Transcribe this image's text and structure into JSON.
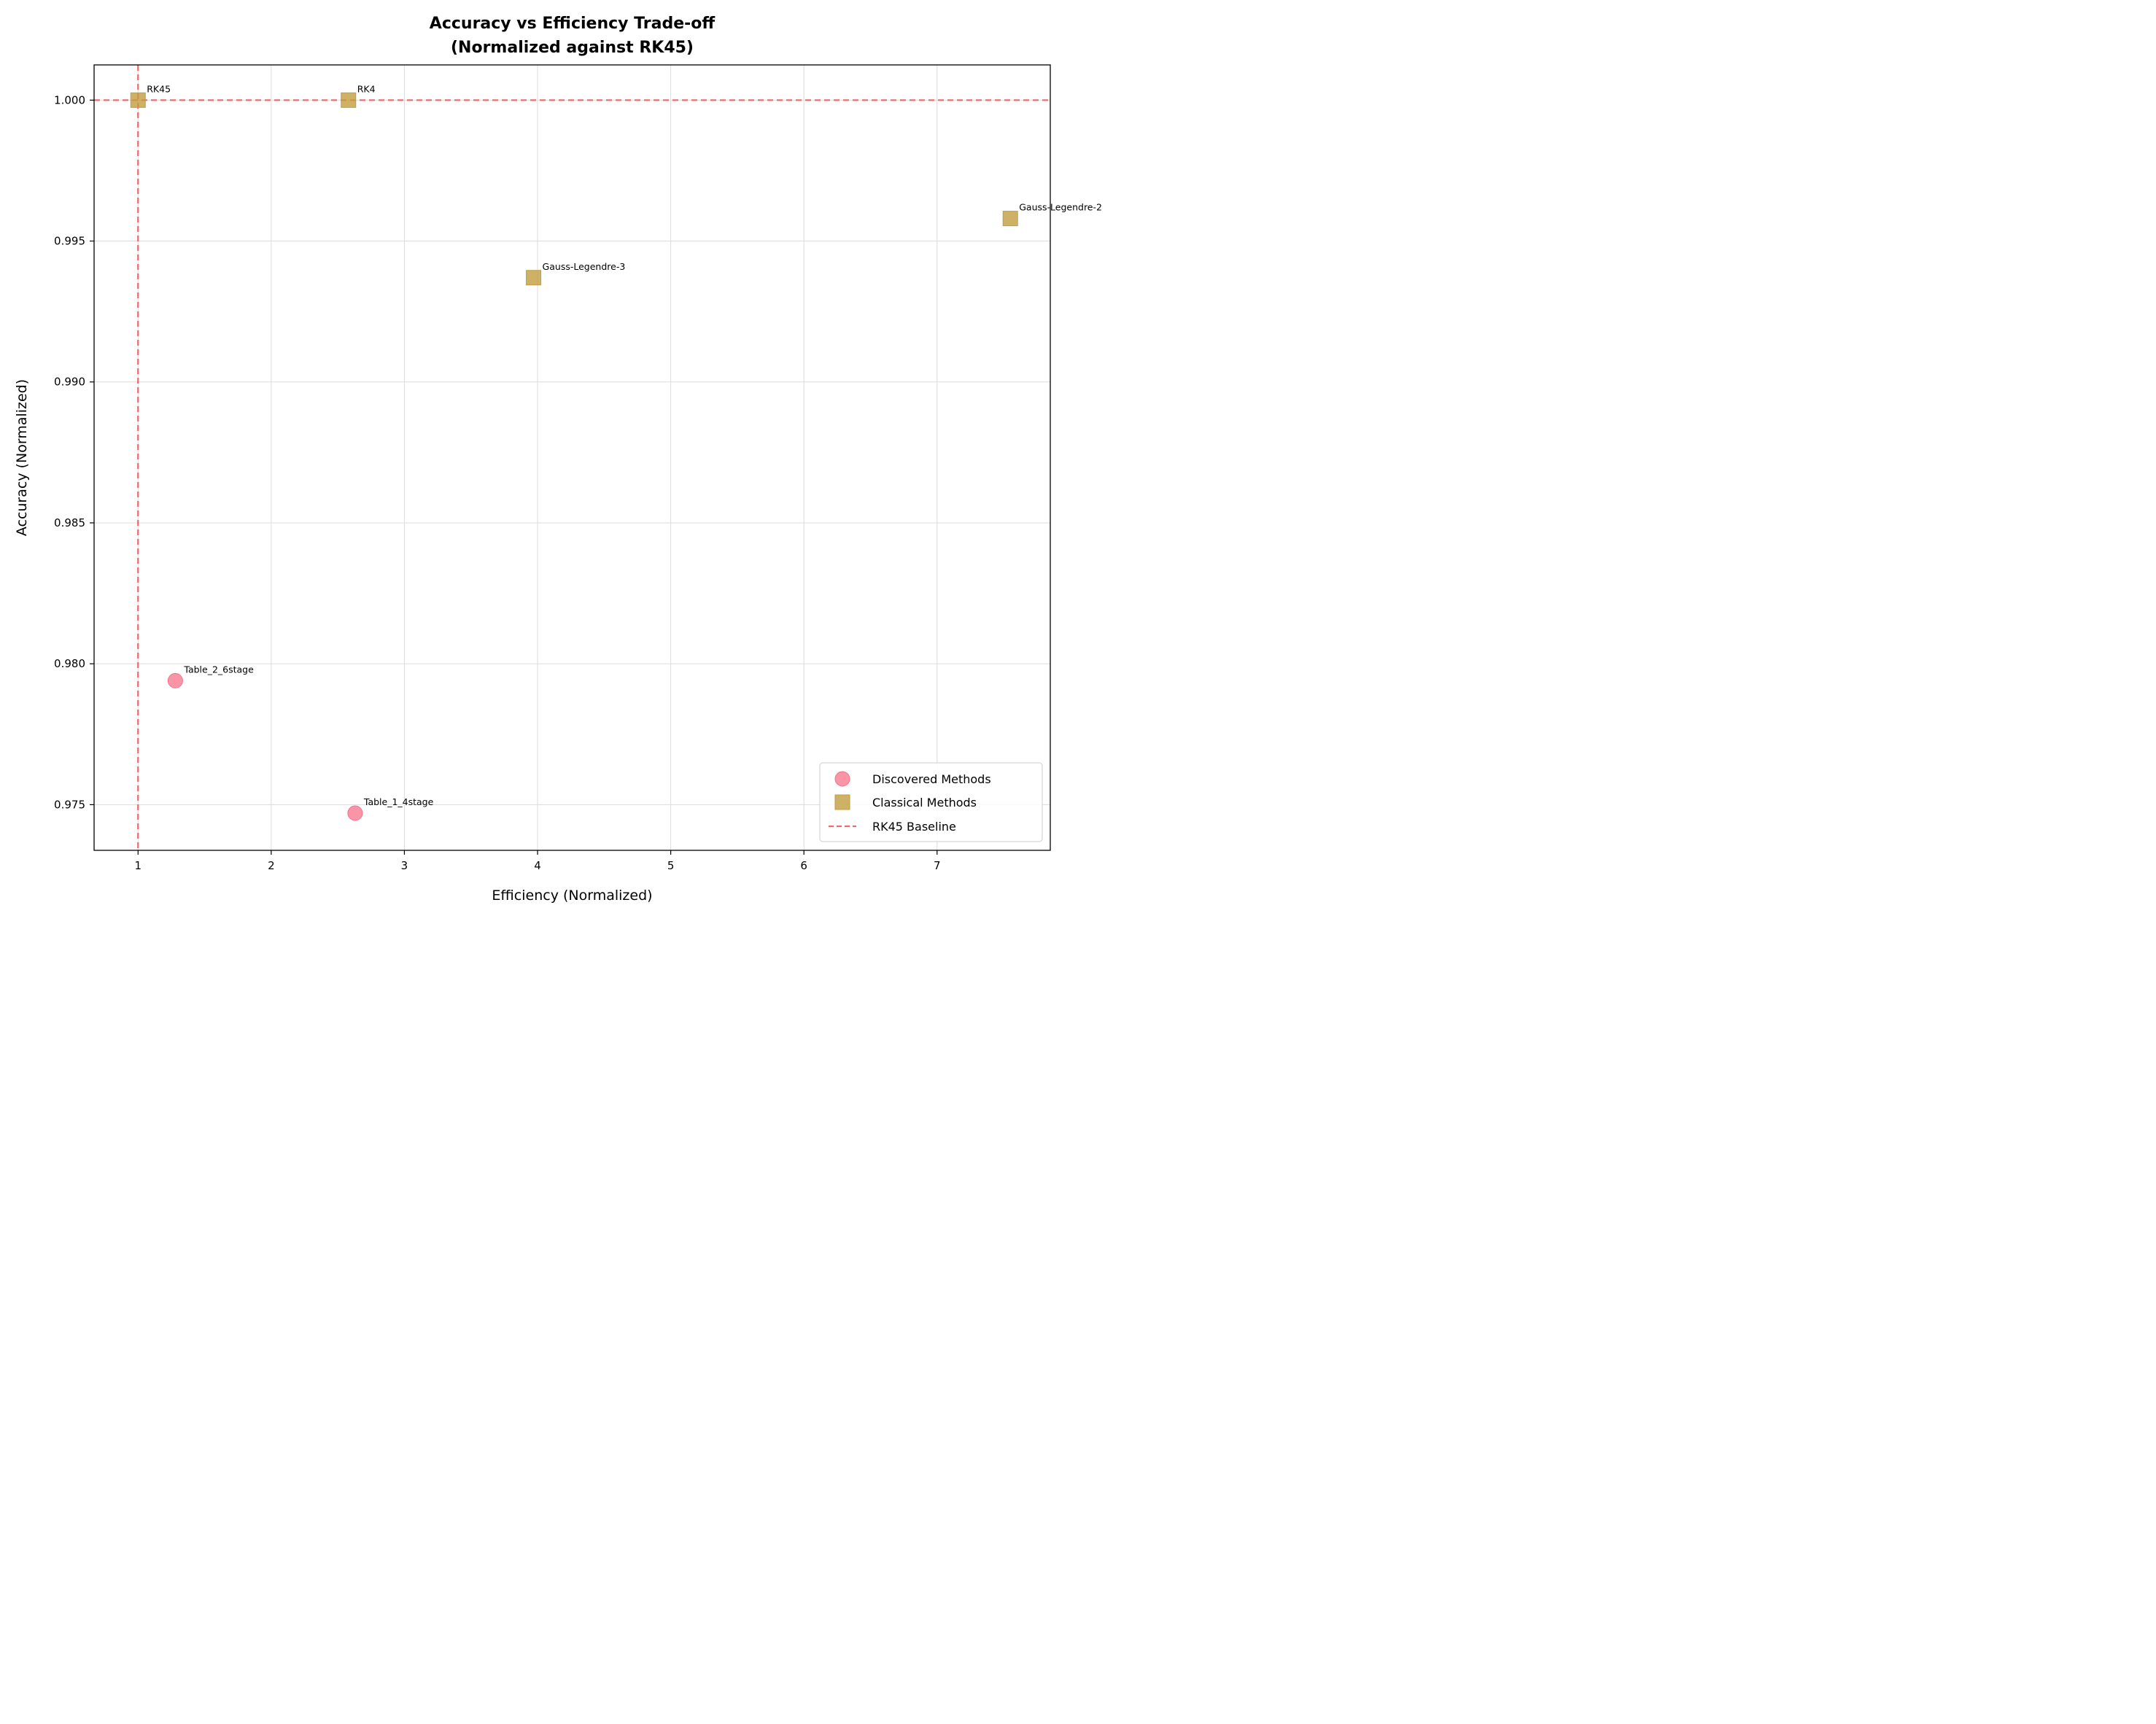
{
  "chart_data": {
    "type": "scatter",
    "title_line1": "Accuracy vs Efficiency Trade-off",
    "title_line2": "(Normalized against RK45)",
    "xlabel": "Efficiency (Normalized)",
    "ylabel": "Accuracy (Normalized)",
    "xlim": [
      0.67,
      7.85
    ],
    "ylim": [
      0.97338,
      1.00125
    ],
    "x_ticks": [
      1,
      2,
      3,
      4,
      5,
      6,
      7
    ],
    "y_ticks": [
      0.975,
      0.98,
      0.985,
      0.99,
      0.995,
      1.0
    ],
    "y_tick_labels": [
      "0.975",
      "0.980",
      "0.985",
      "0.990",
      "0.995",
      "1.000"
    ],
    "grid": true,
    "legend_position": "bottom-right",
    "series": [
      {
        "name": "Discovered Methods",
        "marker": "circle",
        "color": "#f77189",
        "points": [
          {
            "label": "Table_2_6stage",
            "x": 1.28,
            "y": 0.9794
          },
          {
            "label": "Table_1_4stage",
            "x": 2.63,
            "y": 0.9747
          }
        ]
      },
      {
        "name": "Classical Methods",
        "marker": "square",
        "color": "#c39d3f",
        "points": [
          {
            "label": "RK45",
            "x": 1.0,
            "y": 1.0
          },
          {
            "label": "RK4",
            "x": 2.58,
            "y": 1.0
          },
          {
            "label": "Gauss-Legendre-3",
            "x": 3.97,
            "y": 0.9937
          },
          {
            "label": "Gauss-Legendre-2",
            "x": 7.55,
            "y": 0.9958
          }
        ]
      }
    ],
    "baseline": {
      "name": "RK45 Baseline",
      "x": 1.0,
      "y": 1.0,
      "color": "#f05050",
      "style": "dashed"
    }
  }
}
